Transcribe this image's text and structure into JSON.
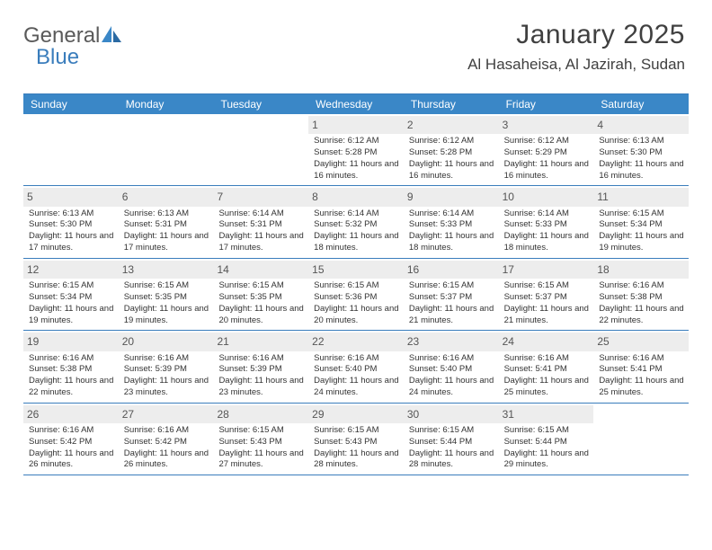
{
  "logo": {
    "text1": "General",
    "text2": "Blue",
    "accent": "#3a87c7"
  },
  "title": "January 2025",
  "location": "Al Hasaheisa, Al Jazirah, Sudan",
  "weekdays": [
    "Sunday",
    "Monday",
    "Tuesday",
    "Wednesday",
    "Thursday",
    "Friday",
    "Saturday"
  ],
  "colors": {
    "header_bg": "#3a87c7",
    "header_text": "#ffffff",
    "border": "#3a7dbc",
    "daynum_bg": "#ededed",
    "text": "#333333"
  },
  "weeks": [
    [
      null,
      null,
      null,
      {
        "n": "1",
        "sr": "6:12 AM",
        "ss": "5:28 PM",
        "dl": "11 hours and 16 minutes."
      },
      {
        "n": "2",
        "sr": "6:12 AM",
        "ss": "5:28 PM",
        "dl": "11 hours and 16 minutes."
      },
      {
        "n": "3",
        "sr": "6:12 AM",
        "ss": "5:29 PM",
        "dl": "11 hours and 16 minutes."
      },
      {
        "n": "4",
        "sr": "6:13 AM",
        "ss": "5:30 PM",
        "dl": "11 hours and 16 minutes."
      }
    ],
    [
      {
        "n": "5",
        "sr": "6:13 AM",
        "ss": "5:30 PM",
        "dl": "11 hours and 17 minutes."
      },
      {
        "n": "6",
        "sr": "6:13 AM",
        "ss": "5:31 PM",
        "dl": "11 hours and 17 minutes."
      },
      {
        "n": "7",
        "sr": "6:14 AM",
        "ss": "5:31 PM",
        "dl": "11 hours and 17 minutes."
      },
      {
        "n": "8",
        "sr": "6:14 AM",
        "ss": "5:32 PM",
        "dl": "11 hours and 18 minutes."
      },
      {
        "n": "9",
        "sr": "6:14 AM",
        "ss": "5:33 PM",
        "dl": "11 hours and 18 minutes."
      },
      {
        "n": "10",
        "sr": "6:14 AM",
        "ss": "5:33 PM",
        "dl": "11 hours and 18 minutes."
      },
      {
        "n": "11",
        "sr": "6:15 AM",
        "ss": "5:34 PM",
        "dl": "11 hours and 19 minutes."
      }
    ],
    [
      {
        "n": "12",
        "sr": "6:15 AM",
        "ss": "5:34 PM",
        "dl": "11 hours and 19 minutes."
      },
      {
        "n": "13",
        "sr": "6:15 AM",
        "ss": "5:35 PM",
        "dl": "11 hours and 19 minutes."
      },
      {
        "n": "14",
        "sr": "6:15 AM",
        "ss": "5:35 PM",
        "dl": "11 hours and 20 minutes."
      },
      {
        "n": "15",
        "sr": "6:15 AM",
        "ss": "5:36 PM",
        "dl": "11 hours and 20 minutes."
      },
      {
        "n": "16",
        "sr": "6:15 AM",
        "ss": "5:37 PM",
        "dl": "11 hours and 21 minutes."
      },
      {
        "n": "17",
        "sr": "6:15 AM",
        "ss": "5:37 PM",
        "dl": "11 hours and 21 minutes."
      },
      {
        "n": "18",
        "sr": "6:16 AM",
        "ss": "5:38 PM",
        "dl": "11 hours and 22 minutes."
      }
    ],
    [
      {
        "n": "19",
        "sr": "6:16 AM",
        "ss": "5:38 PM",
        "dl": "11 hours and 22 minutes."
      },
      {
        "n": "20",
        "sr": "6:16 AM",
        "ss": "5:39 PM",
        "dl": "11 hours and 23 minutes."
      },
      {
        "n": "21",
        "sr": "6:16 AM",
        "ss": "5:39 PM",
        "dl": "11 hours and 23 minutes."
      },
      {
        "n": "22",
        "sr": "6:16 AM",
        "ss": "5:40 PM",
        "dl": "11 hours and 24 minutes."
      },
      {
        "n": "23",
        "sr": "6:16 AM",
        "ss": "5:40 PM",
        "dl": "11 hours and 24 minutes."
      },
      {
        "n": "24",
        "sr": "6:16 AM",
        "ss": "5:41 PM",
        "dl": "11 hours and 25 minutes."
      },
      {
        "n": "25",
        "sr": "6:16 AM",
        "ss": "5:41 PM",
        "dl": "11 hours and 25 minutes."
      }
    ],
    [
      {
        "n": "26",
        "sr": "6:16 AM",
        "ss": "5:42 PM",
        "dl": "11 hours and 26 minutes."
      },
      {
        "n": "27",
        "sr": "6:16 AM",
        "ss": "5:42 PM",
        "dl": "11 hours and 26 minutes."
      },
      {
        "n": "28",
        "sr": "6:15 AM",
        "ss": "5:43 PM",
        "dl": "11 hours and 27 minutes."
      },
      {
        "n": "29",
        "sr": "6:15 AM",
        "ss": "5:43 PM",
        "dl": "11 hours and 28 minutes."
      },
      {
        "n": "30",
        "sr": "6:15 AM",
        "ss": "5:44 PM",
        "dl": "11 hours and 28 minutes."
      },
      {
        "n": "31",
        "sr": "6:15 AM",
        "ss": "5:44 PM",
        "dl": "11 hours and 29 minutes."
      },
      null
    ]
  ],
  "labels": {
    "sunrise": "Sunrise: ",
    "sunset": "Sunset: ",
    "daylight": "Daylight: "
  }
}
